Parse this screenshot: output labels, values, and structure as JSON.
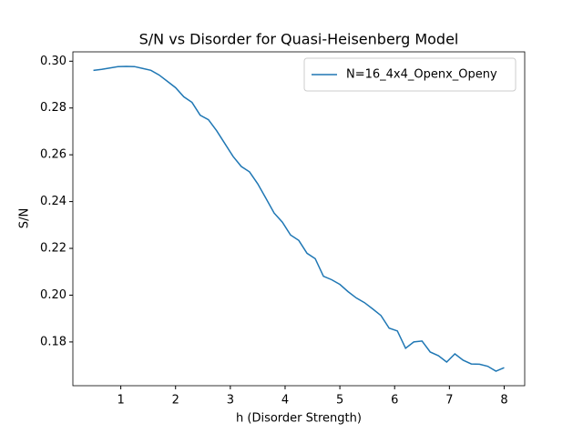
{
  "chart_data": {
    "type": "line",
    "title": "S/N vs Disorder for Quasi-Heisenberg Model",
    "xlabel": "h (Disorder Strength)",
    "ylabel": "S/N",
    "x": [
      0.5,
      0.65,
      0.8,
      0.95,
      1.1,
      1.25,
      1.4,
      1.55,
      1.7,
      1.85,
      2.0,
      2.15,
      2.3,
      2.45,
      2.6,
      2.75,
      2.9,
      3.05,
      3.2,
      3.35,
      3.5,
      3.65,
      3.8,
      3.95,
      4.1,
      4.25,
      4.4,
      4.55,
      4.7,
      4.85,
      5.0,
      5.15,
      5.3,
      5.45,
      5.6,
      5.75,
      5.9,
      6.05,
      6.2,
      6.35,
      6.5,
      6.65,
      6.8,
      6.95,
      7.1,
      7.25,
      7.4,
      7.55,
      7.7,
      7.85,
      8.0
    ],
    "series": [
      {
        "name": "N=16_4x4_Openx_Openy",
        "color": "#1f77b4",
        "values": [
          0.2961,
          0.2965,
          0.2971,
          0.2977,
          0.2978,
          0.2977,
          0.2969,
          0.2961,
          0.2941,
          0.2914,
          0.2887,
          0.2848,
          0.2824,
          0.2769,
          0.275,
          0.2703,
          0.2648,
          0.2593,
          0.255,
          0.2527,
          0.2476,
          0.2414,
          0.2351,
          0.2312,
          0.2257,
          0.2234,
          0.2179,
          0.2156,
          0.2081,
          0.2066,
          0.2046,
          0.2015,
          0.1988,
          0.1968,
          0.1941,
          0.1913,
          0.1859,
          0.1847,
          0.1773,
          0.18,
          0.1804,
          0.1757,
          0.1741,
          0.1714,
          0.1749,
          0.1722,
          0.1706,
          0.1705,
          0.1696,
          0.1675,
          0.169
        ]
      }
    ],
    "xlim": [
      0.125,
      8.375
    ],
    "xticks": [
      1,
      2,
      3,
      4,
      5,
      6,
      7,
      8
    ],
    "ylim": [
      0.1613,
      0.304
    ],
    "yticks": [
      {
        "value": 0.18,
        "label": "0.18"
      },
      {
        "value": 0.2,
        "label": "0.20"
      },
      {
        "value": 0.22,
        "label": "0.22"
      },
      {
        "value": 0.24,
        "label": "0.24"
      },
      {
        "value": 0.26,
        "label": "0.26"
      },
      {
        "value": 0.28,
        "label": "0.28"
      },
      {
        "value": 0.3,
        "label": "0.30"
      }
    ],
    "grid": false,
    "legend": "upper right"
  }
}
